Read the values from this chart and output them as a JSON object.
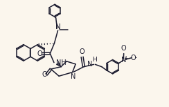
{
  "bg_color": "#fbf6ed",
  "line_color": "#1a1a2e",
  "figsize": [
    2.44,
    1.55
  ],
  "dpi": 100,
  "lw": 1.1,
  "xlim": [
    0,
    10.5
  ],
  "ylim": [
    0,
    6.8
  ]
}
